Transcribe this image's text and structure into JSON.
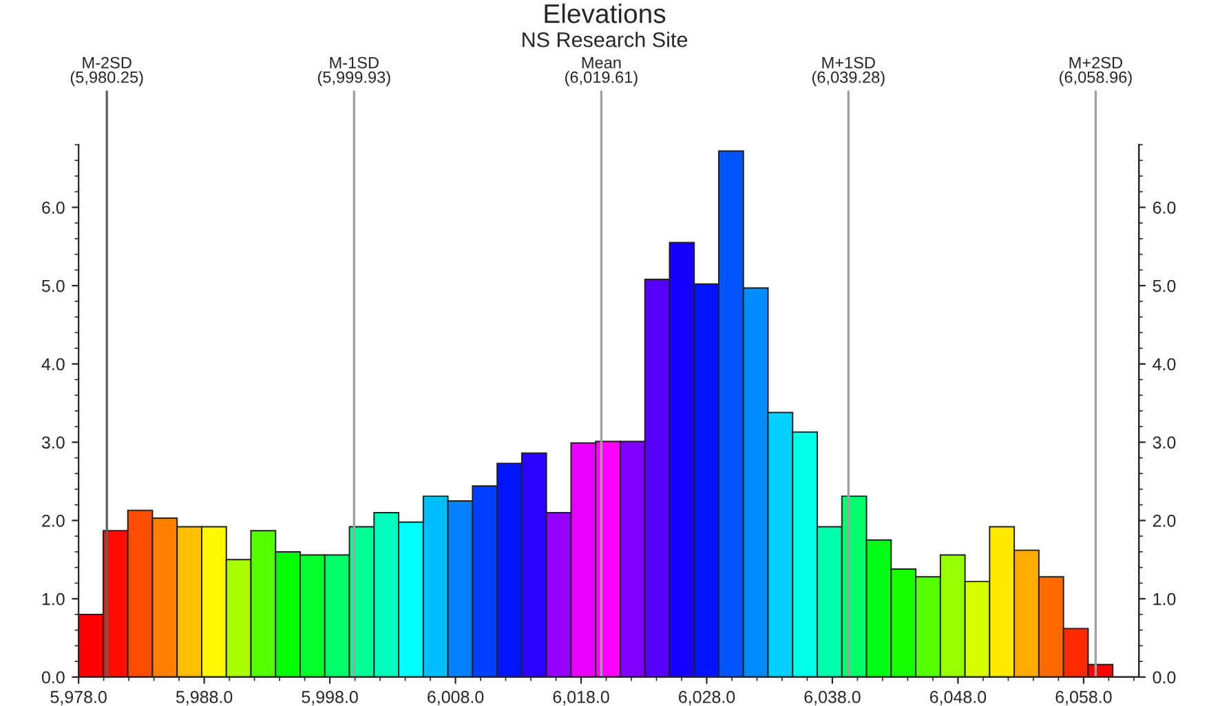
{
  "chart_data": {
    "type": "histogram",
    "title": "Elevations",
    "subtitle": "NS Research Site",
    "bins": [
      5978,
      5979.96,
      5981.92,
      5983.88,
      5985.84,
      5987.8,
      5989.76,
      5991.72,
      5993.68,
      5995.64,
      5997.6,
      5999.56,
      6001.52,
      6003.48,
      6005.44,
      6007.4,
      6009.36,
      6011.32,
      6013.28,
      6015.24,
      6017.2,
      6019.16,
      6021.12,
      6023.08,
      6025.04,
      6027.0,
      6028.96,
      6030.92,
      6032.88,
      6034.84,
      6036.8,
      6038.76,
      6040.72,
      6042.68,
      6044.64,
      6046.6,
      6048.56,
      6050.52,
      6052.48,
      6054.44,
      6056.4,
      6058.36,
      6060.32
    ],
    "values": [
      0.8,
      1.87,
      2.13,
      2.03,
      1.92,
      1.92,
      1.5,
      1.87,
      1.6,
      1.56,
      1.56,
      1.92,
      2.1,
      1.98,
      2.31,
      2.25,
      2.44,
      2.73,
      2.86,
      2.1,
      2.99,
      3.01,
      3.01,
      5.08,
      5.55,
      5.02,
      6.72,
      4.97,
      3.38,
      3.13,
      1.92,
      2.31,
      1.75,
      1.38,
      1.28,
      1.56,
      1.22,
      1.92,
      1.62,
      1.28,
      0.62,
      0.16
    ],
    "colors": [
      "#ff0000",
      "#ff0d00",
      "#ff4d00",
      "#ff8000",
      "#ffbf00",
      "#fff700",
      "#aaff00",
      "#55ff00",
      "#00ff00",
      "#00ff2b",
      "#00ff6a",
      "#00ff95",
      "#00ffbf",
      "#00ffff",
      "#00bfff",
      "#0080ff",
      "#0040ff",
      "#0015ff",
      "#2a00ff",
      "#9500ff",
      "#ea00ff",
      "#ff00ff",
      "#8000ff",
      "#5500ff",
      "#1500ff",
      "#0015ff",
      "#0055ff",
      "#008cff",
      "#00d0ff",
      "#00ffea",
      "#00ffaa",
      "#00ff6a",
      "#00ff15",
      "#15ff00",
      "#55ff00",
      "#95ff00",
      "#d5ff00",
      "#ffea00",
      "#ffaa00",
      "#ff6a00",
      "#ff2b00",
      "#ff0000"
    ],
    "xlim": [
      5978,
      6062.4
    ],
    "xticks": [
      {
        "value": 5978,
        "label": "5,978.0"
      },
      {
        "value": 5988,
        "label": "5,988.0"
      },
      {
        "value": 5998,
        "label": "5,998.0"
      },
      {
        "value": 6008,
        "label": "6,008.0"
      },
      {
        "value": 6018,
        "label": "6,018.0"
      },
      {
        "value": 6028,
        "label": "6,028.0"
      },
      {
        "value": 6038,
        "label": "6,038.0"
      },
      {
        "value": 6048,
        "label": "6,048.0"
      },
      {
        "value": 6058,
        "label": "6,058.0"
      }
    ],
    "ylim": [
      0,
      6.8
    ],
    "yticks": [
      {
        "value": 0,
        "label": "0.0"
      },
      {
        "value": 1,
        "label": "1.0"
      },
      {
        "value": 2,
        "label": "2.0"
      },
      {
        "value": 3,
        "label": "3.0"
      },
      {
        "value": 4,
        "label": "4.0"
      },
      {
        "value": 5,
        "label": "5.0"
      },
      {
        "value": 6,
        "label": "6.0"
      }
    ],
    "y2lim": [
      0,
      6.8
    ],
    "y2ticks": [
      {
        "value": 0,
        "label": "0.0"
      },
      {
        "value": 1,
        "label": "1.0"
      },
      {
        "value": 2,
        "label": "2.0"
      },
      {
        "value": 3,
        "label": "3.0"
      },
      {
        "value": 4,
        "label": "4.0"
      },
      {
        "value": 5,
        "label": "5.0"
      },
      {
        "value": 6,
        "label": "6.0"
      }
    ],
    "ref_lines": [
      {
        "axis": "x",
        "value": 5980.25,
        "label": "M-2SD\n(5,980.25)",
        "color": "#606060"
      },
      {
        "axis": "x",
        "value": 5999.93,
        "label": "M-1SD\n(5,999.93)",
        "color": "#a0a0a0"
      },
      {
        "axis": "x",
        "value": 6019.61,
        "label": "Mean\n(6,019.61)",
        "color": "#a0a0a0"
      },
      {
        "axis": "x",
        "value": 6039.28,
        "label": "M+1SD\n(6,039.28)",
        "color": "#a0a0a0"
      },
      {
        "axis": "x",
        "value": 6058.96,
        "label": "M+2SD\n(6,058.96)",
        "color": "#a0a0a0"
      }
    ],
    "grid": false,
    "legend": false
  }
}
